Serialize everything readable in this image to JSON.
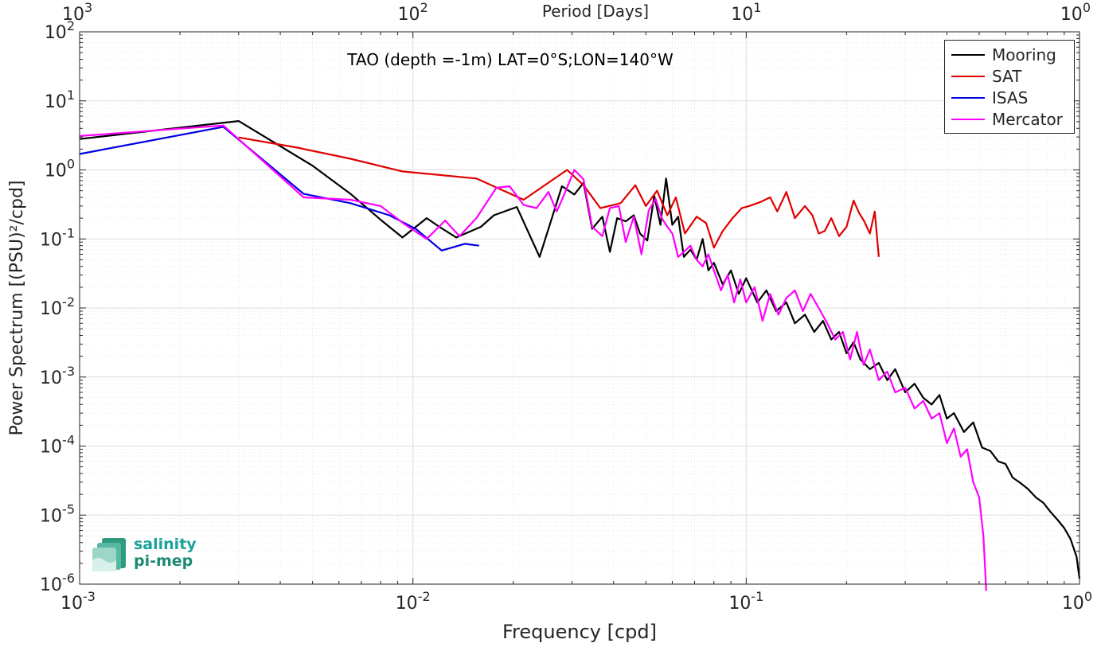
{
  "chart_data": {
    "type": "line",
    "title": "TAO (depth =-1m) LAT=0°S;LON=140°W",
    "xlabel": "Frequency [cpd]",
    "ylabel": "Power Spectrum [(PSU)²/cpd]",
    "top_xlabel": "Period [Days]",
    "x_scale": "log",
    "y_scale": "log",
    "xlim": [
      0.001,
      1
    ],
    "ylim": [
      1e-06,
      100
    ],
    "grid": true,
    "legend_position": "top-right",
    "x_ticks": [
      {
        "value": 0.001,
        "base": "10",
        "exp": "-3"
      },
      {
        "value": 0.01,
        "base": "10",
        "exp": "-2"
      },
      {
        "value": 0.1,
        "base": "10",
        "exp": "-1"
      },
      {
        "value": 1,
        "base": "10",
        "exp": "0"
      }
    ],
    "top_ticks": [
      {
        "value": 0.001,
        "base": "10",
        "exp": "3"
      },
      {
        "value": 0.01,
        "base": "10",
        "exp": "2"
      },
      {
        "value": 0.1,
        "base": "10",
        "exp": "1"
      },
      {
        "value": 1,
        "base": "10",
        "exp": "0"
      }
    ],
    "y_ticks": [
      {
        "value": 100,
        "base": "10",
        "exp": "2"
      },
      {
        "value": 10,
        "base": "10",
        "exp": "1"
      },
      {
        "value": 1,
        "base": "10",
        "exp": "0"
      },
      {
        "value": 0.1,
        "base": "10",
        "exp": "-1"
      },
      {
        "value": 0.01,
        "base": "10",
        "exp": "-2"
      },
      {
        "value": 0.001,
        "base": "10",
        "exp": "-3"
      },
      {
        "value": 0.0001,
        "base": "10",
        "exp": "-4"
      },
      {
        "value": 1e-05,
        "base": "10",
        "exp": "-5"
      },
      {
        "value": 1e-06,
        "base": "10",
        "exp": "-6"
      }
    ],
    "series": [
      {
        "name": "Mooring",
        "color": "#000000",
        "x": [
          0.001,
          0.003,
          0.005,
          0.0065,
          0.008,
          0.0093,
          0.011,
          0.012,
          0.0135,
          0.016,
          0.0175,
          0.0205,
          0.024,
          0.028,
          0.0305,
          0.0325,
          0.0345,
          0.037,
          0.039,
          0.041,
          0.0435,
          0.046,
          0.048,
          0.0505,
          0.053,
          0.0553,
          0.0575,
          0.06,
          0.0625,
          0.065,
          0.068,
          0.071,
          0.074,
          0.077,
          0.08,
          0.085,
          0.09,
          0.095,
          0.1,
          0.108,
          0.115,
          0.123,
          0.132,
          0.14,
          0.15,
          0.16,
          0.17,
          0.18,
          0.19,
          0.2,
          0.21,
          0.22,
          0.235,
          0.25,
          0.265,
          0.28,
          0.3,
          0.32,
          0.34,
          0.36,
          0.38,
          0.4,
          0.42,
          0.45,
          0.48,
          0.51,
          0.54,
          0.57,
          0.6,
          0.63,
          0.66,
          0.7,
          0.74,
          0.78,
          0.82,
          0.86,
          0.9,
          0.94,
          0.98,
          1.0
        ],
        "y": [
          2.8,
          5.1,
          1.15,
          0.45,
          0.19,
          0.105,
          0.2,
          0.15,
          0.105,
          0.15,
          0.22,
          0.29,
          0.055,
          0.58,
          0.44,
          0.65,
          0.14,
          0.21,
          0.065,
          0.2,
          0.18,
          0.22,
          0.12,
          0.095,
          0.42,
          0.16,
          0.75,
          0.16,
          0.21,
          0.055,
          0.07,
          0.05,
          0.1,
          0.035,
          0.045,
          0.022,
          0.035,
          0.016,
          0.027,
          0.012,
          0.018,
          0.009,
          0.012,
          0.006,
          0.008,
          0.0045,
          0.0065,
          0.0035,
          0.0045,
          0.0022,
          0.0032,
          0.0018,
          0.0013,
          0.0016,
          0.0009,
          0.0013,
          0.0006,
          0.0008,
          0.0005,
          0.0004,
          0.00055,
          0.00025,
          0.0003,
          0.00016,
          0.00022,
          9.5e-05,
          8.5e-05,
          6e-05,
          5.5e-05,
          3.5e-05,
          3e-05,
          2.4e-05,
          1.8e-05,
          1.5e-05,
          1.1e-05,
          8.5e-06,
          6.5e-06,
          4.5e-06,
          2.5e-06,
          1.2e-06
        ]
      },
      {
        "name": "SAT",
        "color": "#e00000",
        "x": [
          0.003,
          0.0045,
          0.0065,
          0.0093,
          0.0155,
          0.0215,
          0.029,
          0.0325,
          0.0365,
          0.042,
          0.0465,
          0.05,
          0.054,
          0.058,
          0.0615,
          0.0655,
          0.071,
          0.0758,
          0.08,
          0.085,
          0.091,
          0.097,
          0.102,
          0.11,
          0.118,
          0.124,
          0.132,
          0.14,
          0.15,
          0.158,
          0.165,
          0.172,
          0.18,
          0.19,
          0.2,
          0.21,
          0.218,
          0.226,
          0.235,
          0.243,
          0.25
        ],
        "y": [
          2.95,
          2.1,
          1.45,
          0.95,
          0.75,
          0.37,
          1.0,
          0.6,
          0.28,
          0.33,
          0.6,
          0.3,
          0.5,
          0.22,
          0.4,
          0.12,
          0.21,
          0.17,
          0.075,
          0.13,
          0.2,
          0.28,
          0.3,
          0.34,
          0.4,
          0.25,
          0.48,
          0.2,
          0.3,
          0.22,
          0.12,
          0.13,
          0.2,
          0.11,
          0.15,
          0.36,
          0.24,
          0.18,
          0.12,
          0.25,
          0.055
        ]
      },
      {
        "name": "ISAS",
        "color": "#0000e0",
        "x": [
          0.001,
          0.0027,
          0.0047,
          0.0065,
          0.0085,
          0.0102,
          0.0122,
          0.0143,
          0.0158
        ],
        "y": [
          1.7,
          4.2,
          0.45,
          0.33,
          0.22,
          0.14,
          0.068,
          0.085,
          0.08
        ]
      },
      {
        "name": "Mercator",
        "color": "#ff00ff",
        "x": [
          0.001,
          0.0027,
          0.0047,
          0.0065,
          0.008,
          0.0095,
          0.011,
          0.0125,
          0.0138,
          0.0155,
          0.0178,
          0.0195,
          0.0215,
          0.0235,
          0.0255,
          0.027,
          0.0285,
          0.0305,
          0.0325,
          0.0345,
          0.037,
          0.039,
          0.0415,
          0.0435,
          0.046,
          0.0485,
          0.051,
          0.0535,
          0.0558,
          0.058,
          0.06,
          0.0625,
          0.065,
          0.068,
          0.071,
          0.074,
          0.077,
          0.08,
          0.084,
          0.088,
          0.092,
          0.096,
          0.1,
          0.106,
          0.112,
          0.118,
          0.125,
          0.132,
          0.14,
          0.148,
          0.156,
          0.165,
          0.175,
          0.185,
          0.195,
          0.205,
          0.215,
          0.225,
          0.235,
          0.25,
          0.265,
          0.28,
          0.3,
          0.32,
          0.34,
          0.36,
          0.38,
          0.4,
          0.42,
          0.44,
          0.46,
          0.48,
          0.5,
          0.515,
          0.525
        ],
        "y": [
          3.1,
          4.4,
          0.4,
          0.37,
          0.3,
          0.16,
          0.1,
          0.185,
          0.11,
          0.2,
          0.55,
          0.58,
          0.31,
          0.28,
          0.48,
          0.25,
          0.45,
          1.0,
          0.73,
          0.15,
          0.11,
          0.28,
          0.3,
          0.09,
          0.21,
          0.06,
          0.26,
          0.38,
          0.2,
          0.15,
          0.12,
          0.055,
          0.065,
          0.08,
          0.05,
          0.04,
          0.06,
          0.035,
          0.018,
          0.03,
          0.012,
          0.026,
          0.012,
          0.02,
          0.0065,
          0.016,
          0.008,
          0.014,
          0.018,
          0.009,
          0.016,
          0.01,
          0.006,
          0.0035,
          0.0045,
          0.0018,
          0.0045,
          0.0015,
          0.0025,
          0.0009,
          0.0012,
          0.0006,
          0.0007,
          0.00035,
          0.00045,
          0.00025,
          0.0003,
          0.00011,
          0.00018,
          7e-05,
          9e-05,
          3e-05,
          1.8e-05,
          5e-06,
          8e-07
        ]
      }
    ]
  },
  "logo": {
    "line1": "salinity",
    "line2": "pi-mep"
  }
}
